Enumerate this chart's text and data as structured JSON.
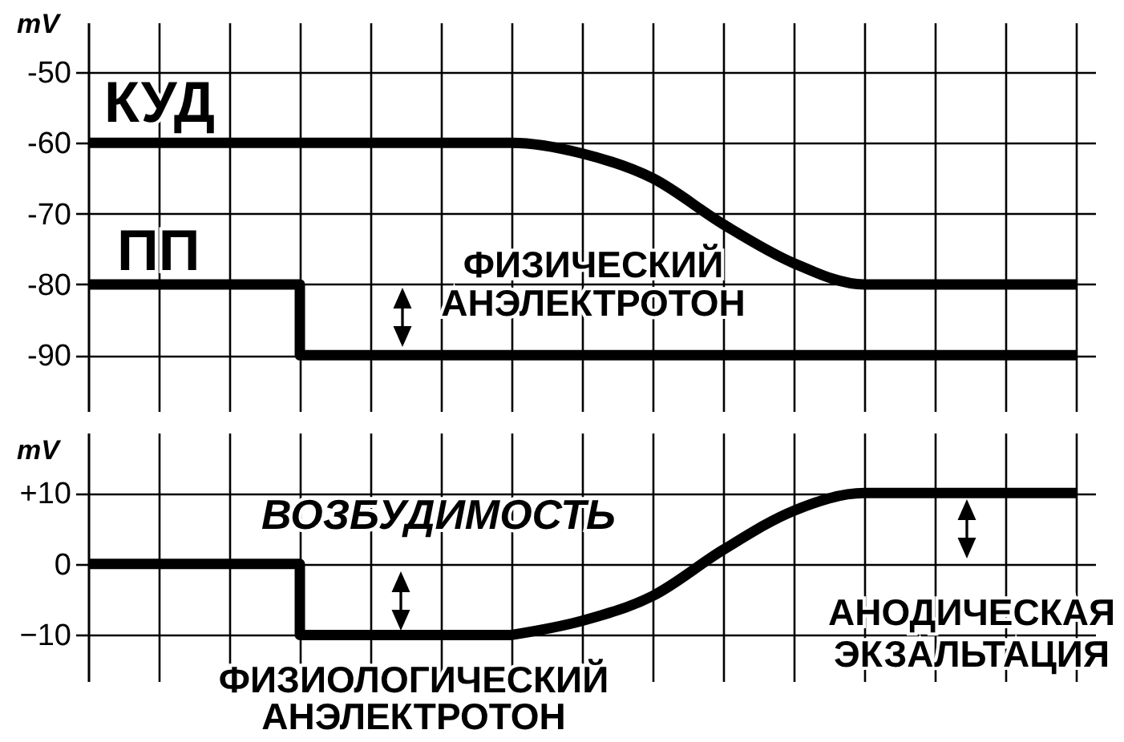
{
  "chart_data": [
    {
      "type": "line",
      "ylabel": "mV",
      "categories": [
        null,
        null,
        null,
        null,
        null,
        null,
        null,
        null,
        null,
        null,
        null,
        null,
        null,
        null,
        null
      ],
      "ylim": [
        -98,
        -43
      ],
      "yticks": [
        -50,
        -60,
        -70,
        -80,
        -90
      ],
      "grid": true,
      "tick_labels": "y",
      "line_style": "solid",
      "series": [
        {
          "name": "КУД",
          "color": "#000000",
          "values": [
            -60,
            -60,
            -60,
            -60,
            -60,
            -60,
            -60,
            -61.5,
            -65,
            -71.5,
            -77,
            -80,
            -80,
            -80,
            -80
          ]
        },
        {
          "name": "ПП",
          "type": "step",
          "color": "#000000",
          "values": [
            -80,
            -80,
            -80,
            -90,
            -90,
            -90,
            -90,
            -90,
            -90,
            -90,
            -90,
            -90,
            -90,
            -90,
            -90
          ]
        }
      ],
      "annotations": [
        "ФИЗИЧЕСКИЙ\nАНЭЛЕКТРОТОН"
      ]
    },
    {
      "type": "line",
      "ylabel": "mV",
      "categories": [
        null,
        null,
        null,
        null,
        null,
        null,
        null,
        null,
        null,
        null,
        null,
        null,
        null,
        null,
        null
      ],
      "ylim": [
        -16.5,
        18.5
      ],
      "yticks": [
        {
          "value": 10,
          "label": "+10"
        },
        0,
        {
          "value": -10,
          "label": "−10"
        }
      ],
      "grid": true,
      "tick_labels": "y",
      "line_style": "solid",
      "series": [
        {
          "name": "ВОЗБУДИМОСТЬ",
          "type": "step",
          "color": "#000000",
          "values": [
            0,
            0,
            0,
            -10,
            -10,
            -10,
            -10,
            null,
            null,
            null,
            null,
            null,
            null,
            null,
            null
          ]
        },
        {
          "color": "#000000",
          "values": [
            null,
            null,
            null,
            null,
            null,
            null,
            -10,
            -8,
            -4.5,
            2,
            7.5,
            10,
            10,
            10,
            10
          ]
        }
      ],
      "annotations": [
        "ФИЗИОЛОГИЧЕСКИЙ\nАНЭЛЕКТРОТОН",
        "АНОДИЧЕСКАЯ\nЭКЗАЛЬТАЦИЯ"
      ]
    }
  ]
}
